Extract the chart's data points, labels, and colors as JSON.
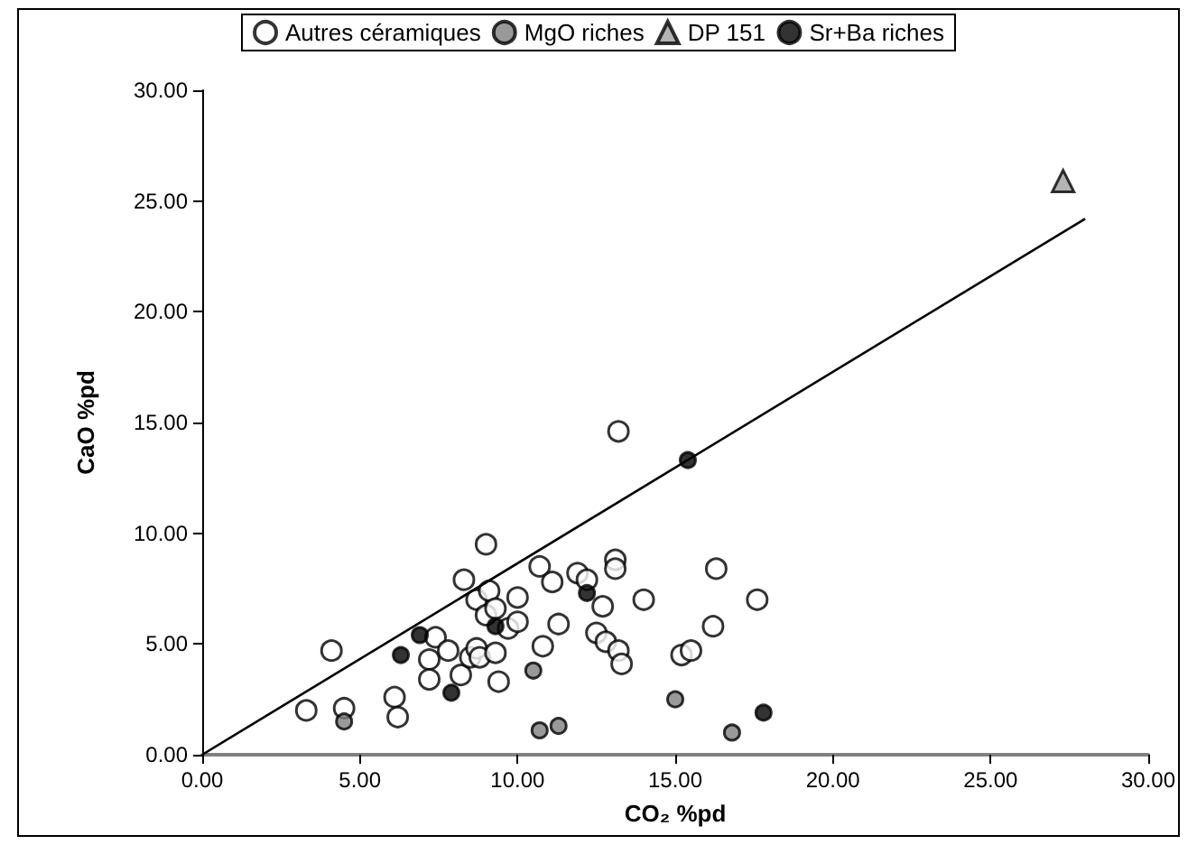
{
  "chart_data": {
    "type": "scatter",
    "xlabel": "CO₂ %pd",
    "ylabel": "CaO %pd",
    "xlim": [
      0,
      30
    ],
    "ylim": [
      0,
      30
    ],
    "xticks": [
      {
        "value": 0,
        "label": "0.00"
      },
      {
        "value": 5,
        "label": "5.00"
      },
      {
        "value": 10,
        "label": "10.00"
      },
      {
        "value": 15,
        "label": "15.00"
      },
      {
        "value": 20,
        "label": "20.00"
      },
      {
        "value": 25,
        "label": "25.00"
      },
      {
        "value": 30,
        "label": "30.00"
      }
    ],
    "yticks": [
      {
        "value": 0,
        "label": "0.00"
      },
      {
        "value": 5,
        "label": "5.00"
      },
      {
        "value": 10,
        "label": "10.00"
      },
      {
        "value": 15,
        "label": "15.00"
      },
      {
        "value": 20,
        "label": "20.00"
      },
      {
        "value": 25,
        "label": "25.00"
      },
      {
        "value": 30,
        "label": "30.00"
      }
    ],
    "grid": false,
    "legend": "top",
    "series": [
      {
        "name": "Autres céramiques",
        "color": "#ffffff",
        "marker": "circle",
        "x": [
          3.3,
          4.1,
          4.5,
          6.1,
          6.2,
          7.2,
          7.2,
          7.4,
          7.8,
          8.2,
          8.3,
          8.5,
          8.7,
          8.7,
          8.8,
          9.0,
          9.0,
          9.1,
          9.3,
          9.4,
          9.3,
          9.7,
          10.0,
          10.0,
          10.7,
          10.8,
          11.1,
          11.3,
          11.9,
          12.2,
          12.7,
          12.5,
          12.8,
          13.1,
          13.1,
          13.2,
          13.3,
          14.0,
          15.2,
          15.5,
          16.2,
          16.3,
          17.6,
          13.2
        ],
        "values": [
          2.0,
          4.7,
          2.1,
          2.6,
          1.7,
          4.3,
          3.4,
          5.3,
          4.7,
          3.6,
          7.9,
          4.4,
          7.0,
          4.8,
          4.4,
          9.5,
          6.3,
          7.4,
          4.6,
          3.3,
          6.6,
          5.7,
          7.1,
          6.0,
          8.5,
          4.9,
          7.8,
          5.9,
          8.2,
          7.9,
          6.7,
          5.5,
          5.1,
          8.8,
          8.4,
          4.7,
          4.1,
          7.0,
          4.5,
          4.7,
          5.8,
          8.4,
          7.0,
          14.6
        ]
      },
      {
        "name": "MgO riches",
        "color": "#808080",
        "marker": "circle",
        "x": [
          4.5,
          10.5,
          10.7,
          11.3,
          15.0,
          16.8
        ],
        "values": [
          1.5,
          3.8,
          1.1,
          1.3,
          2.5,
          1.0
        ]
      },
      {
        "name": "DP 151",
        "color": "#a0a0a0",
        "marker": "triangle",
        "x": [
          27.3
        ],
        "values": [
          25.9
        ]
      },
      {
        "name": "Sr+Ba riches",
        "color": "#000000",
        "marker": "circle",
        "x": [
          6.3,
          6.9,
          7.9,
          9.3,
          12.2,
          15.4,
          17.8
        ],
        "values": [
          4.5,
          5.4,
          2.8,
          5.8,
          7.3,
          13.3,
          1.9
        ]
      },
      {
        "type": "line",
        "color": "#000000",
        "marker": "none",
        "x": [
          0,
          28
        ],
        "values": [
          0,
          24.2
        ]
      }
    ]
  }
}
